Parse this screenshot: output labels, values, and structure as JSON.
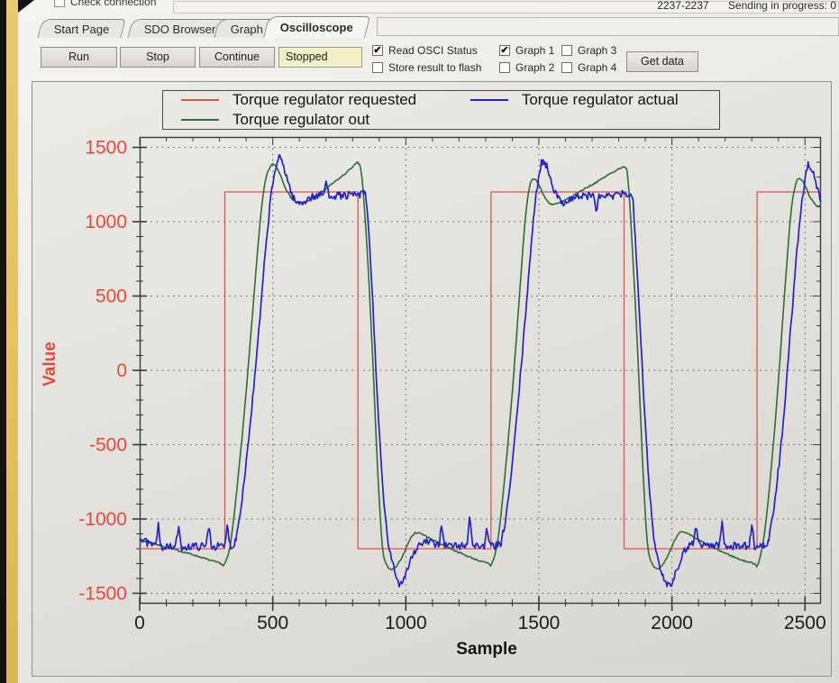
{
  "window": {
    "top_left_checkbox_label": "Check connection",
    "top_left_checkbox_checked": false,
    "status_range": "2237-2237",
    "status_message": "Sending in progress: 0"
  },
  "tabs": [
    {
      "label": "Start Page",
      "active": false
    },
    {
      "label": "SDO Browser",
      "active": false
    },
    {
      "label": "Graph",
      "active": false
    },
    {
      "label": "Oscilloscope",
      "active": true
    }
  ],
  "toolbar": {
    "run_label": "Run",
    "stop_label": "Stop",
    "continue_label": "Continue",
    "status_value": "Stopped",
    "get_data_label": "Get data",
    "checkboxes": [
      {
        "label": "Read OSCI Status",
        "checked": true
      },
      {
        "label": "Store result to flash",
        "checked": false
      },
      {
        "label": "Graph 1",
        "checked": true
      },
      {
        "label": "Graph 2",
        "checked": false
      },
      {
        "label": "Graph 3",
        "checked": false
      },
      {
        "label": "Graph 4",
        "checked": false
      }
    ]
  },
  "chart_data": {
    "type": "line",
    "xlabel": "Sample",
    "ylabel": "Value",
    "xlim": [
      0,
      2560
    ],
    "ylim": [
      -1570,
      1570
    ],
    "x_ticks": [
      0,
      500,
      1000,
      1500,
      2000,
      2500
    ],
    "y_ticks": [
      -1500,
      -1000,
      -500,
      0,
      500,
      1000,
      1500
    ],
    "minor_tick_step": 100,
    "grid": "dotted lines at major ticks",
    "grid_color": "#5c5f58",
    "frame_color": "#3a3a38",
    "axis_label_color": "#e8473d",
    "x_tick_label_color": "#1c1b1a",
    "legend_position": "top",
    "noise_seed": 7,
    "series": [
      {
        "name": "Torque regulator requested",
        "color": "#d8564e",
        "width": 1.3,
        "smooth": false,
        "noise": 0,
        "points": [
          [
            0,
            -1200
          ],
          [
            320,
            -1200
          ],
          [
            320,
            1200
          ],
          [
            820,
            1200
          ],
          [
            820,
            -1200
          ],
          [
            1320,
            -1200
          ],
          [
            1320,
            1200
          ],
          [
            1820,
            1200
          ],
          [
            1820,
            -1200
          ],
          [
            2320,
            -1200
          ],
          [
            2320,
            1200
          ],
          [
            2560,
            1200
          ]
        ]
      },
      {
        "name": "Torque regulator out",
        "color": "#2f6e35",
        "width": 1.6,
        "smooth": true,
        "noise": 5,
        "points": [
          [
            0,
            -1140
          ],
          [
            60,
            -1170
          ],
          [
            130,
            -1205
          ],
          [
            200,
            -1240
          ],
          [
            260,
            -1275
          ],
          [
            305,
            -1300
          ],
          [
            318,
            -1305
          ],
          [
            340,
            -1180
          ],
          [
            365,
            -800
          ],
          [
            395,
            -250
          ],
          [
            425,
            400
          ],
          [
            450,
            950
          ],
          [
            470,
            1250
          ],
          [
            488,
            1360
          ],
          [
            505,
            1385
          ],
          [
            525,
            1330
          ],
          [
            550,
            1220
          ],
          [
            575,
            1150
          ],
          [
            600,
            1130
          ],
          [
            630,
            1140
          ],
          [
            670,
            1180
          ],
          [
            720,
            1250
          ],
          [
            770,
            1320
          ],
          [
            810,
            1385
          ],
          [
            822,
            1390
          ],
          [
            835,
            1300
          ],
          [
            855,
            800
          ],
          [
            875,
            100
          ],
          [
            895,
            -700
          ],
          [
            912,
            -1180
          ],
          [
            928,
            -1310
          ],
          [
            945,
            -1340
          ],
          [
            965,
            -1320
          ],
          [
            990,
            -1240
          ],
          [
            1015,
            -1140
          ],
          [
            1035,
            -1095
          ],
          [
            1060,
            -1100
          ],
          [
            1090,
            -1130
          ],
          [
            1140,
            -1175
          ],
          [
            1200,
            -1225
          ],
          [
            1260,
            -1270
          ],
          [
            1310,
            -1300
          ],
          [
            1322,
            -1305
          ],
          [
            1345,
            -1150
          ],
          [
            1370,
            -750
          ],
          [
            1400,
            -150
          ],
          [
            1425,
            450
          ],
          [
            1448,
            1000
          ],
          [
            1465,
            1230
          ],
          [
            1480,
            1290
          ],
          [
            1500,
            1250
          ],
          [
            1520,
            1170
          ],
          [
            1545,
            1120
          ],
          [
            1575,
            1125
          ],
          [
            1615,
            1160
          ],
          [
            1665,
            1215
          ],
          [
            1720,
            1270
          ],
          [
            1775,
            1330
          ],
          [
            1820,
            1365
          ],
          [
            1835,
            1280
          ],
          [
            1852,
            800
          ],
          [
            1872,
            100
          ],
          [
            1892,
            -700
          ],
          [
            1908,
            -1170
          ],
          [
            1925,
            -1300
          ],
          [
            1942,
            -1335
          ],
          [
            1962,
            -1315
          ],
          [
            1988,
            -1235
          ],
          [
            2012,
            -1135
          ],
          [
            2032,
            -1090
          ],
          [
            2058,
            -1100
          ],
          [
            2090,
            -1130
          ],
          [
            2140,
            -1180
          ],
          [
            2200,
            -1230
          ],
          [
            2260,
            -1275
          ],
          [
            2310,
            -1300
          ],
          [
            2322,
            -1308
          ],
          [
            2345,
            -1130
          ],
          [
            2370,
            -720
          ],
          [
            2398,
            -120
          ],
          [
            2422,
            480
          ],
          [
            2445,
            1020
          ],
          [
            2462,
            1230
          ],
          [
            2478,
            1290
          ],
          [
            2498,
            1250
          ],
          [
            2518,
            1170
          ],
          [
            2538,
            1115
          ],
          [
            2552,
            1105
          ],
          [
            2560,
            1115
          ]
        ]
      },
      {
        "name": "Torque regulator actual",
        "color": "#2323cd",
        "width": 1.7,
        "smooth": true,
        "noise": 26,
        "spikes": [
          [
            70,
            170
          ],
          [
            145,
            140
          ],
          [
            260,
            160
          ],
          [
            330,
            150
          ],
          [
            700,
            90
          ],
          [
            1135,
            150
          ],
          [
            1240,
            230
          ],
          [
            1305,
            110
          ],
          [
            1717,
            -110
          ],
          [
            2090,
            120
          ],
          [
            2188,
            160
          ],
          [
            2300,
            140
          ]
        ],
        "points": [
          [
            0,
            -1130
          ],
          [
            25,
            -1160
          ],
          [
            60,
            -1185
          ],
          [
            120,
            -1190
          ],
          [
            200,
            -1185
          ],
          [
            280,
            -1185
          ],
          [
            345,
            -1180
          ],
          [
            362,
            -1120
          ],
          [
            385,
            -850
          ],
          [
            410,
            -450
          ],
          [
            440,
            100
          ],
          [
            468,
            700
          ],
          [
            492,
            1150
          ],
          [
            512,
            1370
          ],
          [
            524,
            1425
          ],
          [
            538,
            1390
          ],
          [
            556,
            1280
          ],
          [
            575,
            1170
          ],
          [
            592,
            1125
          ],
          [
            612,
            1130
          ],
          [
            640,
            1160
          ],
          [
            690,
            1180
          ],
          [
            760,
            1175
          ],
          [
            830,
            1180
          ],
          [
            848,
            1175
          ],
          [
            862,
            900
          ],
          [
            880,
            300
          ],
          [
            898,
            -350
          ],
          [
            918,
            -900
          ],
          [
            938,
            -1200
          ],
          [
            958,
            -1350
          ],
          [
            975,
            -1430
          ],
          [
            990,
            -1405
          ],
          [
            1008,
            -1320
          ],
          [
            1028,
            -1235
          ],
          [
            1050,
            -1180
          ],
          [
            1075,
            -1155
          ],
          [
            1110,
            -1170
          ],
          [
            1180,
            -1180
          ],
          [
            1260,
            -1180
          ],
          [
            1348,
            -1175
          ],
          [
            1365,
            -1100
          ],
          [
            1390,
            -800
          ],
          [
            1415,
            -350
          ],
          [
            1442,
            200
          ],
          [
            1468,
            780
          ],
          [
            1490,
            1180
          ],
          [
            1506,
            1370
          ],
          [
            1516,
            1405
          ],
          [
            1530,
            1370
          ],
          [
            1548,
            1270
          ],
          [
            1566,
            1180
          ],
          [
            1584,
            1135
          ],
          [
            1605,
            1140
          ],
          [
            1640,
            1165
          ],
          [
            1700,
            1175
          ],
          [
            1770,
            1170
          ],
          [
            1845,
            1175
          ],
          [
            1858,
            1000
          ],
          [
            1875,
            500
          ],
          [
            1892,
            -100
          ],
          [
            1910,
            -650
          ],
          [
            1928,
            -1050
          ],
          [
            1948,
            -1290
          ],
          [
            1970,
            -1400
          ],
          [
            1988,
            -1440
          ],
          [
            2002,
            -1415
          ],
          [
            2020,
            -1330
          ],
          [
            2040,
            -1240
          ],
          [
            2062,
            -1180
          ],
          [
            2088,
            -1160
          ],
          [
            2130,
            -1175
          ],
          [
            2210,
            -1180
          ],
          [
            2300,
            -1180
          ],
          [
            2352,
            -1172
          ],
          [
            2368,
            -1100
          ],
          [
            2392,
            -800
          ],
          [
            2418,
            -350
          ],
          [
            2445,
            250
          ],
          [
            2470,
            800
          ],
          [
            2492,
            1180
          ],
          [
            2505,
            1330
          ],
          [
            2515,
            1385
          ],
          [
            2528,
            1350
          ],
          [
            2540,
            1270
          ],
          [
            2552,
            1190
          ],
          [
            2560,
            1150
          ]
        ]
      }
    ]
  }
}
